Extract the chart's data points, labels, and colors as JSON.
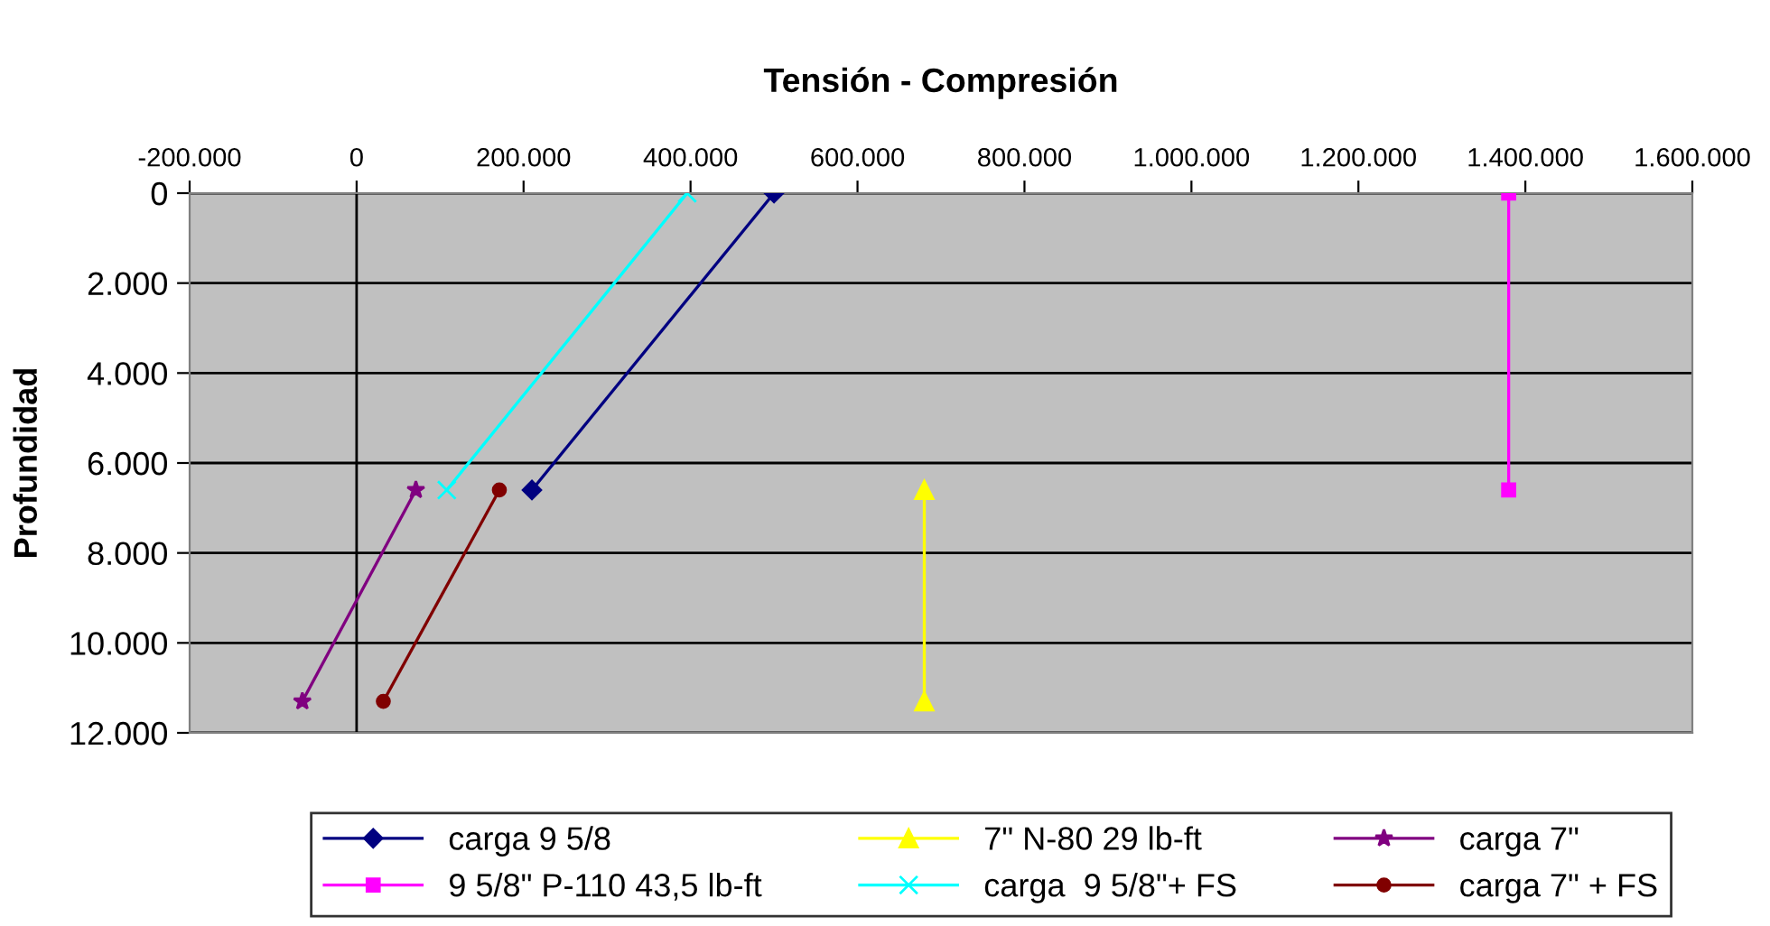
{
  "chart_data": {
    "type": "line",
    "title": "Tensión - Compresión",
    "ylabel": "Profundidad",
    "xlim": [
      -200000,
      1600000
    ],
    "ylim": [
      12000,
      0
    ],
    "xticks": [
      {
        "value": -200000,
        "label": "-200.000"
      },
      0,
      {
        "value": 200000,
        "label": "200.000"
      },
      {
        "value": 400000,
        "label": "400.000"
      },
      {
        "value": 600000,
        "label": "600.000"
      },
      {
        "value": 800000,
        "label": "800.000"
      },
      {
        "value": 1000000,
        "label": "1.000.000"
      },
      {
        "value": 1200000,
        "label": "1.200.000"
      },
      {
        "value": 1400000,
        "label": "1.400.000"
      },
      {
        "value": 1600000,
        "label": "1.600.000"
      }
    ],
    "yticks": [
      0,
      {
        "value": 2000,
        "label": "2.000"
      },
      {
        "value": 4000,
        "label": "4.000"
      },
      {
        "value": 6000,
        "label": "6.000"
      },
      {
        "value": 8000,
        "label": "8.000"
      },
      {
        "value": 10000,
        "label": "10.000"
      },
      {
        "value": 12000,
        "label": "12.000"
      }
    ],
    "grid": "y",
    "legend": "bottom",
    "line_style": "solid",
    "ref_lines": [
      {
        "axis": "x",
        "value": 0,
        "color": "#000000"
      }
    ],
    "series": [
      {
        "name": "carga 9 5/8",
        "color": "#000080",
        "marker": "diamond",
        "x": [
          500000,
          210000
        ],
        "values": [
          0,
          6600
        ]
      },
      {
        "name": "9 5/8\" P-110 43,5 lb-ft",
        "color": "#ff00ff",
        "marker": "square",
        "x": [
          1380000,
          1380000
        ],
        "values": [
          0,
          6600
        ]
      },
      {
        "name": "7\" N-80 29 lb-ft",
        "color": "#ffff00",
        "marker": "triangle",
        "x": [
          680000,
          680000
        ],
        "values": [
          6600,
          11300
        ]
      },
      {
        "name": "carga  9 5/8\"+ FS",
        "color": "#00ffff",
        "marker": "cross",
        "x": [
          396000,
          108000
        ],
        "values": [
          0,
          6600
        ]
      },
      {
        "name": "carga 7\"",
        "color": "#800080",
        "marker": "star",
        "x": [
          71000,
          -65000
        ],
        "values": [
          6600,
          11300
        ]
      },
      {
        "name": "carga 7\" + FS",
        "color": "#800000",
        "marker": "circle",
        "x": [
          171000,
          32000
        ],
        "values": [
          6600,
          11300
        ]
      }
    ]
  }
}
